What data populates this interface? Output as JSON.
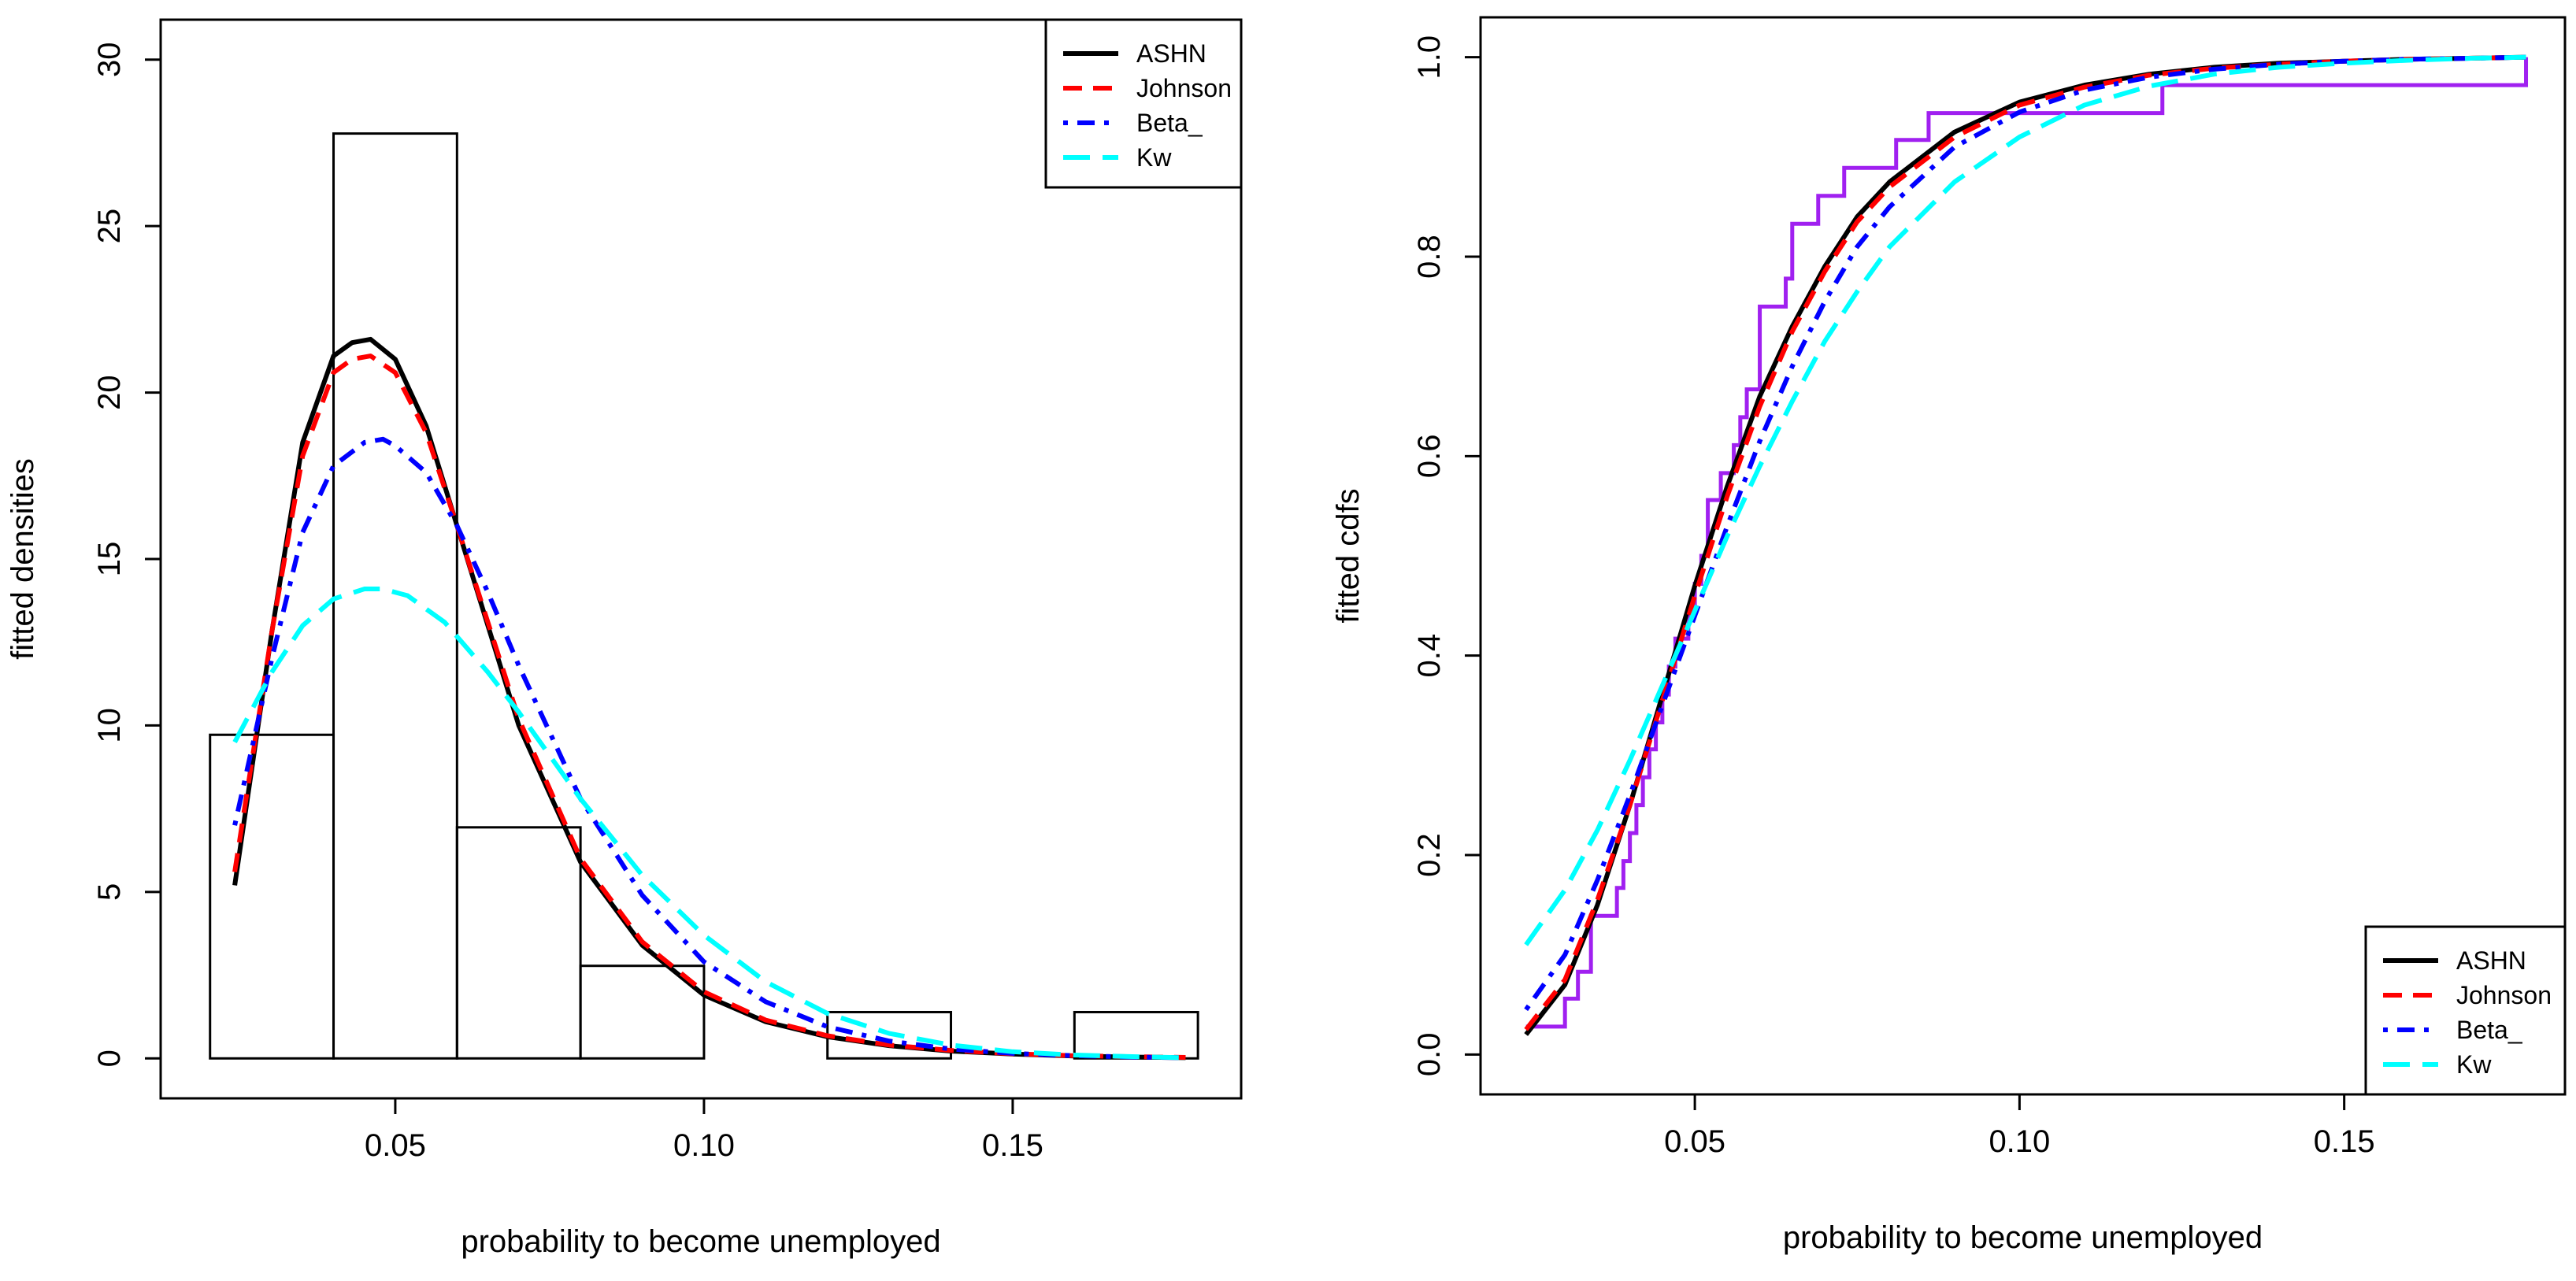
{
  "chart_data": [
    {
      "type": "histogram",
      "title": "",
      "xlabel": "probability to become unemployed",
      "ylabel": "fitted densities",
      "xlim": [
        0.012,
        0.187
      ],
      "ylim": [
        -1.2,
        31.2
      ],
      "xticks": [
        0.05,
        0.1,
        0.15
      ],
      "xtick_labels": [
        "0.05",
        "0.10",
        "0.15"
      ],
      "yticks": [
        0,
        5,
        10,
        15,
        20,
        25,
        30
      ],
      "ytick_labels": [
        "0",
        "5",
        "10",
        "15",
        "20",
        "25",
        "30"
      ],
      "histogram": {
        "bin_edges": [
          0.02,
          0.04,
          0.06,
          0.08,
          0.1,
          0.12,
          0.14,
          0.16,
          0.18
        ],
        "density": [
          9.72,
          27.78,
          6.94,
          2.78,
          0.0,
          1.39,
          0.0,
          1.39
        ]
      },
      "series": [
        {
          "name": "ASHN",
          "color": "#000000",
          "dash": "solid",
          "x": [
            0.024,
            0.03,
            0.035,
            0.04,
            0.043,
            0.046,
            0.05,
            0.055,
            0.06,
            0.065,
            0.07,
            0.08,
            0.09,
            0.1,
            0.11,
            0.12,
            0.13,
            0.14,
            0.15,
            0.16,
            0.17,
            0.178
          ],
          "y": [
            5.2,
            12.8,
            18.5,
            21.1,
            21.5,
            21.6,
            21.0,
            19.0,
            16.0,
            13.0,
            10.0,
            5.9,
            3.4,
            1.9,
            1.1,
            0.65,
            0.38,
            0.22,
            0.13,
            0.07,
            0.04,
            0.02
          ]
        },
        {
          "name": "Johnson",
          "color": "#ff0000",
          "dash": "dashed",
          "x": [
            0.024,
            0.03,
            0.035,
            0.04,
            0.043,
            0.046,
            0.05,
            0.055,
            0.06,
            0.065,
            0.07,
            0.08,
            0.09,
            0.1,
            0.11,
            0.12,
            0.13,
            0.14,
            0.15,
            0.16,
            0.17,
            0.178
          ],
          "y": [
            5.6,
            12.8,
            18.1,
            20.6,
            21.0,
            21.1,
            20.6,
            18.8,
            16.0,
            13.1,
            10.2,
            6.0,
            3.5,
            2.0,
            1.15,
            0.68,
            0.4,
            0.24,
            0.14,
            0.08,
            0.05,
            0.03
          ]
        },
        {
          "name": "Beta_",
          "color": "#0000ff",
          "dash": "dotdash",
          "x": [
            0.024,
            0.03,
            0.035,
            0.04,
            0.045,
            0.048,
            0.05,
            0.055,
            0.06,
            0.065,
            0.07,
            0.08,
            0.09,
            0.1,
            0.11,
            0.12,
            0.13,
            0.14,
            0.15,
            0.16,
            0.17,
            0.178
          ],
          "y": [
            7.0,
            12.0,
            15.8,
            17.8,
            18.5,
            18.6,
            18.4,
            17.6,
            16.0,
            14.0,
            11.8,
            7.8,
            4.9,
            2.9,
            1.7,
            0.95,
            0.52,
            0.28,
            0.15,
            0.08,
            0.04,
            0.02
          ]
        },
        {
          "name": "Kw",
          "color": "#00ffff",
          "dash": "longdash",
          "x": [
            0.024,
            0.03,
            0.035,
            0.04,
            0.045,
            0.048,
            0.052,
            0.058,
            0.065,
            0.07,
            0.08,
            0.09,
            0.1,
            0.11,
            0.12,
            0.13,
            0.14,
            0.15,
            0.16,
            0.17,
            0.178
          ],
          "y": [
            9.5,
            11.6,
            13.0,
            13.8,
            14.1,
            14.1,
            13.9,
            13.1,
            11.6,
            10.4,
            7.8,
            5.5,
            3.7,
            2.3,
            1.35,
            0.75,
            0.4,
            0.2,
            0.1,
            0.05,
            0.02
          ]
        }
      ],
      "legend": {
        "position": "top-right",
        "entries": [
          "ASHN",
          "Johnson",
          "Beta_",
          "Kw"
        ]
      }
    },
    {
      "type": "line",
      "title": "",
      "xlabel": "probability to become unemployed",
      "ylabel": "fitted cdfs",
      "xlim": [
        0.017,
        0.184
      ],
      "ylim": [
        -0.04,
        1.04
      ],
      "xticks": [
        0.05,
        0.1,
        0.15
      ],
      "xtick_labels": [
        "0.05",
        "0.10",
        "0.15"
      ],
      "yticks": [
        0.0,
        0.2,
        0.4,
        0.6,
        0.8,
        1.0
      ],
      "ytick_labels": [
        "0.0",
        "0.2",
        "0.4",
        "0.6",
        "0.8",
        "1.0"
      ],
      "ecdf": {
        "name": "ECDF",
        "color": "#a020f0",
        "x": [
          0.024,
          0.03,
          0.032,
          0.034,
          0.038,
          0.039,
          0.04,
          0.041,
          0.042,
          0.043,
          0.044,
          0.045,
          0.046,
          0.047,
          0.049,
          0.05,
          0.051,
          0.052,
          0.054,
          0.056,
          0.057,
          0.058,
          0.06,
          0.064,
          0.065,
          0.069,
          0.073,
          0.081,
          0.086,
          0.122,
          0.178
        ],
        "y": [
          0.028,
          0.056,
          0.083,
          0.139,
          0.167,
          0.194,
          0.222,
          0.25,
          0.278,
          0.306,
          0.333,
          0.361,
          0.389,
          0.417,
          0.444,
          0.472,
          0.5,
          0.556,
          0.583,
          0.611,
          0.639,
          0.667,
          0.75,
          0.778,
          0.833,
          0.861,
          0.889,
          0.917,
          0.944,
          0.972,
          1.0
        ]
      },
      "series": [
        {
          "name": "ASHN",
          "color": "#000000",
          "dash": "solid",
          "x": [
            0.024,
            0.03,
            0.035,
            0.04,
            0.045,
            0.05,
            0.055,
            0.06,
            0.065,
            0.07,
            0.075,
            0.08,
            0.09,
            0.1,
            0.11,
            0.12,
            0.13,
            0.14,
            0.15,
            0.16,
            0.17,
            0.178
          ],
          "y": [
            0.02,
            0.07,
            0.15,
            0.25,
            0.36,
            0.47,
            0.57,
            0.66,
            0.73,
            0.79,
            0.84,
            0.875,
            0.925,
            0.955,
            0.972,
            0.983,
            0.99,
            0.994,
            0.996,
            0.998,
            0.999,
            1.0
          ]
        },
        {
          "name": "Johnson",
          "color": "#ff0000",
          "dash": "dashed",
          "x": [
            0.024,
            0.03,
            0.035,
            0.04,
            0.045,
            0.05,
            0.055,
            0.06,
            0.065,
            0.07,
            0.075,
            0.08,
            0.09,
            0.1,
            0.11,
            0.12,
            0.13,
            0.14,
            0.15,
            0.16,
            0.17,
            0.178
          ],
          "y": [
            0.025,
            0.075,
            0.155,
            0.25,
            0.355,
            0.46,
            0.56,
            0.65,
            0.725,
            0.785,
            0.835,
            0.87,
            0.92,
            0.952,
            0.97,
            0.982,
            0.989,
            0.993,
            0.996,
            0.998,
            0.999,
            1.0
          ]
        },
        {
          "name": "Beta_",
          "color": "#0000ff",
          "dash": "dotdash",
          "x": [
            0.024,
            0.03,
            0.035,
            0.04,
            0.045,
            0.05,
            0.055,
            0.06,
            0.065,
            0.07,
            0.075,
            0.08,
            0.09,
            0.1,
            0.11,
            0.12,
            0.13,
            0.14,
            0.15,
            0.16,
            0.17,
            0.178
          ],
          "y": [
            0.045,
            0.1,
            0.175,
            0.26,
            0.35,
            0.44,
            0.53,
            0.615,
            0.69,
            0.755,
            0.81,
            0.85,
            0.91,
            0.945,
            0.967,
            0.98,
            0.988,
            0.993,
            0.996,
            0.998,
            0.999,
            1.0
          ]
        },
        {
          "name": "Kw",
          "color": "#00ffff",
          "dash": "longdash",
          "x": [
            0.024,
            0.03,
            0.035,
            0.04,
            0.045,
            0.05,
            0.055,
            0.06,
            0.065,
            0.07,
            0.075,
            0.08,
            0.09,
            0.1,
            0.11,
            0.12,
            0.13,
            0.14,
            0.15,
            0.16,
            0.17,
            0.178
          ],
          "y": [
            0.11,
            0.165,
            0.225,
            0.295,
            0.37,
            0.445,
            0.52,
            0.59,
            0.655,
            0.715,
            0.765,
            0.81,
            0.875,
            0.92,
            0.952,
            0.971,
            0.983,
            0.99,
            0.994,
            0.997,
            0.999,
            1.0
          ]
        }
      ],
      "legend": {
        "position": "bottom-right",
        "entries": [
          "ASHN",
          "Johnson",
          "Beta_",
          "Kw"
        ]
      }
    }
  ]
}
